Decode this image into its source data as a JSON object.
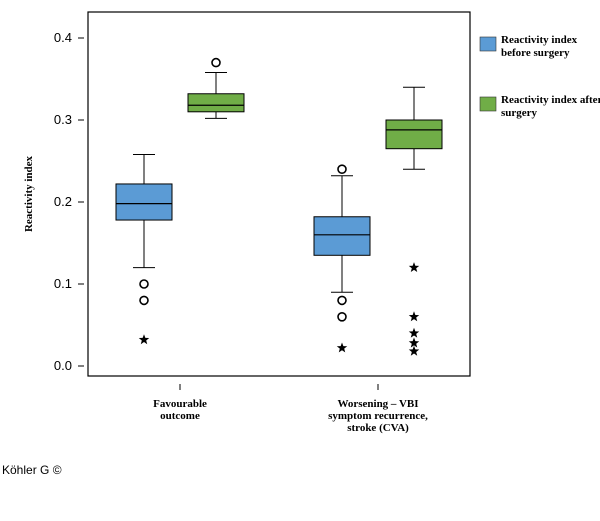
{
  "chart_data": {
    "type": "boxplot",
    "ylabel": "Reactivity index",
    "xlabel": "",
    "ylim": [
      0,
      0.44
    ],
    "y_ticks": [
      {
        "value": 0.0,
        "label": "0.0"
      },
      {
        "value": 0.1,
        "label": "0.1"
      },
      {
        "value": 0.2,
        "label": "0.2"
      },
      {
        "value": 0.3,
        "label": "0.3"
      },
      {
        "value": 0.4,
        "label": "0.4"
      }
    ],
    "categories": [
      {
        "lines": [
          "Favourable",
          "outcome"
        ]
      },
      {
        "lines": [
          "Worsening – VBI",
          "symptom recurrence,",
          "stroke (CVA)"
        ]
      }
    ],
    "series": [
      {
        "name_lines": [
          "Reactivity index",
          "before surgery"
        ],
        "color": "#5b9bd5",
        "boxes": [
          {
            "category": 0,
            "whisker_low": 0.12,
            "q1": 0.178,
            "median": 0.198,
            "q3": 0.222,
            "whisker_high": 0.258,
            "outliers": [
              0.1,
              0.08
            ],
            "extremes": [
              0.032
            ]
          },
          {
            "category": 1,
            "whisker_low": 0.09,
            "q1": 0.135,
            "median": 0.16,
            "q3": 0.182,
            "whisker_high": 0.232,
            "outliers": [
              0.24,
              0.08,
              0.06
            ],
            "extremes": [
              0.022
            ]
          }
        ]
      },
      {
        "name_lines": [
          "Reactivity index after",
          "surgery"
        ],
        "color": "#70ad47",
        "boxes": [
          {
            "category": 0,
            "whisker_low": 0.302,
            "q1": 0.31,
            "median": 0.318,
            "q3": 0.332,
            "whisker_high": 0.358,
            "outliers": [
              0.37
            ],
            "extremes": []
          },
          {
            "category": 1,
            "whisker_low": 0.24,
            "q1": 0.265,
            "median": 0.288,
            "q3": 0.3,
            "whisker_high": 0.34,
            "outliers": [],
            "extremes": [
              0.12,
              0.06,
              0.04,
              0.028,
              0.018
            ]
          }
        ]
      }
    ],
    "legend_position": "right"
  },
  "credit": "Köhler G ©"
}
